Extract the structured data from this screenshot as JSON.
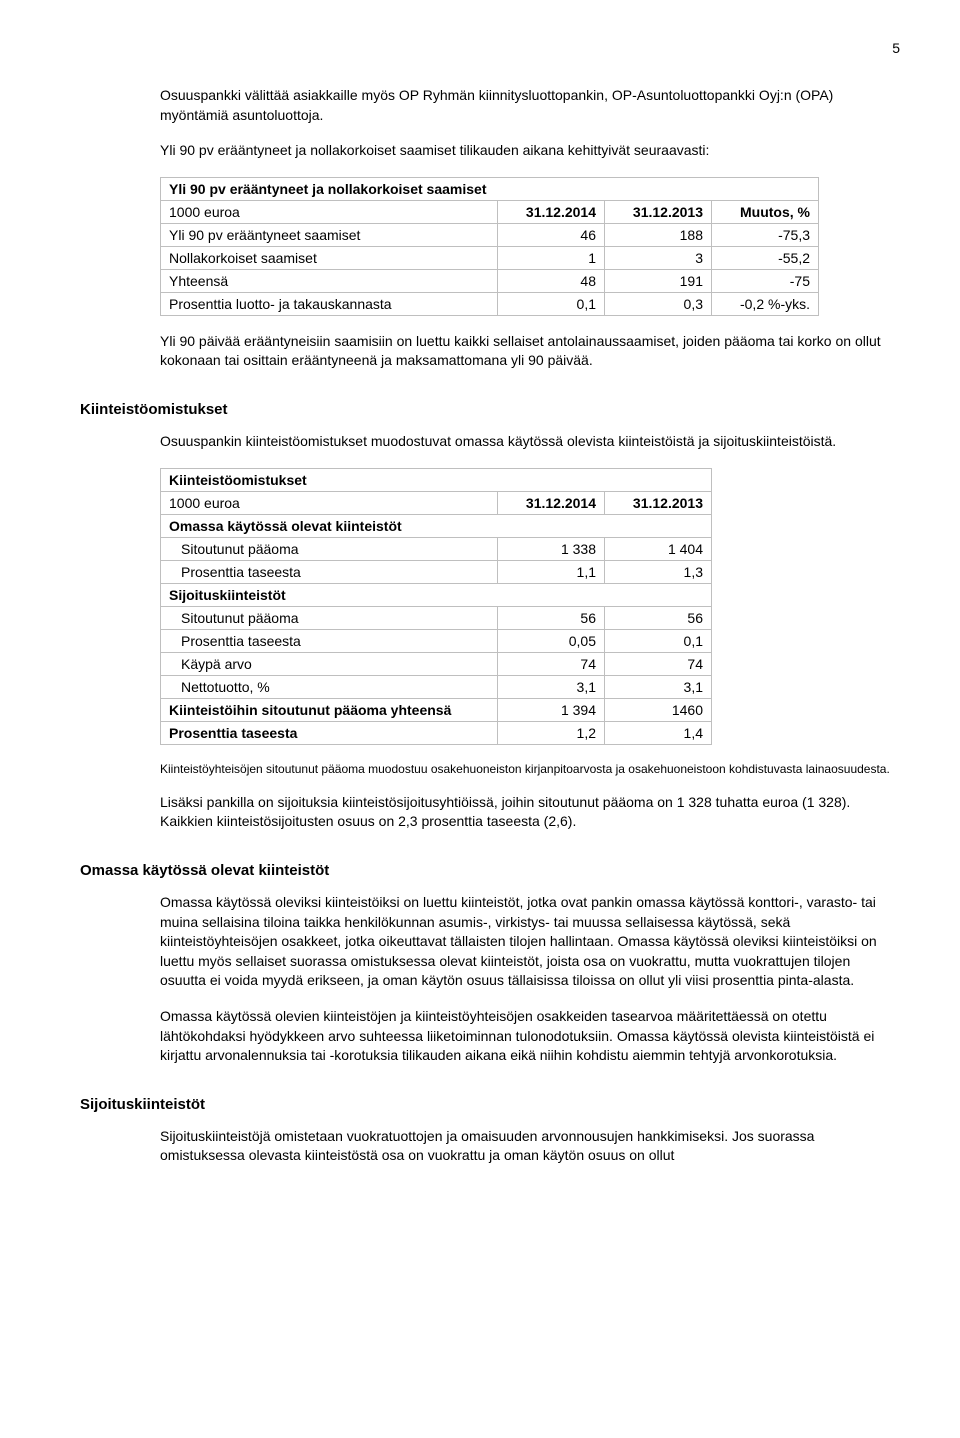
{
  "pageNumber": "5",
  "intro1": "Osuuspankki välittää asiakkaille myös OP Ryhmän kiinnitysluottopankin, OP-Asuntoluottopankki Oyj:n (OPA) myöntämiä asuntoluottoja.",
  "intro2": "Yli 90 pv erääntyneet ja nollakorkoiset saamiset tilikauden aikana kehittyivät seuraavasti:",
  "table1": {
    "title": "Yli 90 pv erääntyneet ja nollakorkoiset saamiset",
    "rowLabel": "1000 euroa",
    "col1": "31.12.2014",
    "col2": "31.12.2013",
    "col3": "Muutos, %",
    "rows": [
      {
        "label": "Yli 90 pv erääntyneet saamiset",
        "v1": "46",
        "v2": "188",
        "v3": "-75,3"
      },
      {
        "label": "Nollakorkoiset saamiset",
        "v1": "1",
        "v2": "3",
        "v3": "-55,2"
      },
      {
        "label": "Yhteensä",
        "v1": "48",
        "v2": "191",
        "v3": "-75"
      },
      {
        "label": "Prosenttia luotto- ja takauskannasta",
        "v1": "0,1",
        "v2": "0,3",
        "v3": "-0,2 %-yks."
      }
    ]
  },
  "afterTable1": "Yli 90 päivää erääntyneisiin saamisiin on luettu kaikki sellaiset antolainaussaamiset, joiden pääoma tai korko on ollut kokonaan tai osittain erääntyneenä ja maksamattomana yli 90 päivää.",
  "kiinteisto": {
    "heading": "Kiinteistöomistukset",
    "para1": "Osuuspankin kiinteistöomistukset muodostuvat omassa käytössä olevista kiinteistöistä ja sijoituskiinteistöistä.",
    "table": {
      "title": "Kiinteistöomistukset",
      "rowLabel": "1000 euroa",
      "col1": "31.12.2014",
      "col2": "31.12.2013",
      "sect1": "Omassa käytössä olevat kiinteistöt",
      "r1a": "Sitoutunut pääoma",
      "r1a_v1": "1 338",
      "r1a_v2": "1 404",
      "r1b": "Prosenttia taseesta",
      "r1b_v1": "1,1",
      "r1b_v2": "1,3",
      "sect2": "Sijoituskiinteistöt",
      "r2a": "Sitoutunut pääoma",
      "r2a_v1": "56",
      "r2a_v2": "56",
      "r2b": "Prosenttia taseesta",
      "r2b_v1": "0,05",
      "r2b_v2": "0,1",
      "r2c": "Käypä arvo",
      "r2c_v1": "74",
      "r2c_v2": "74",
      "r2d": "Nettotuotto, %",
      "r2d_v1": "3,1",
      "r2d_v2": "3,1",
      "tot": "Kiinteistöihin sitoutunut pääoma yhteensä",
      "tot_v1": "1 394",
      "tot_v2": "1460",
      "pros": "Prosenttia taseesta",
      "pros_v1": "1,2",
      "pros_v2": "1,4"
    },
    "note": "Kiinteistöyhteisöjen sitoutunut pääoma muodostuu osakehuoneiston kirjanpitoarvosta ja osakehuoneistoon kohdistuvasta lainaosuudesta.",
    "para2": "Lisäksi pankilla on sijoituksia kiinteistösijoitusyhtiöissä, joihin sitoutunut pääoma on 1 328 tuhatta euroa (1 328). Kaikkien kiinteistösijoitusten osuus on 2,3 prosenttia taseesta (2,6)."
  },
  "omassa": {
    "heading": "Omassa käytössä olevat kiinteistöt",
    "para1": "Omassa käytössä oleviksi kiinteistöiksi on luettu kiinteistöt, jotka ovat pankin omassa käytössä konttori-, varasto- tai muina sellaisina tiloina taikka henkilökunnan asumis-, virkistys- tai muussa sellaisessa käytössä, sekä kiinteistöyhteisöjen osakkeet, jotka oikeuttavat tällaisten tilojen hallintaan. Omassa käytössä oleviksi kiinteistöiksi on luettu myös sellaiset suorassa omistuksessa olevat kiinteistöt, joista osa on vuokrattu, mutta vuokrattujen tilojen osuutta ei voida myydä erikseen, ja oman käytön osuus tällaisissa tiloissa on ollut yli viisi prosenttia pinta-alasta.",
    "para2": "Omassa käytössä olevien kiinteistöjen ja kiinteistöyhteisöjen osakkeiden tasearvoa määritettäessä on otettu lähtökohdaksi hyödykkeen arvo suhteessa liiketoiminnan tulonodotuksiin. Omassa käytössä olevista kiinteistöistä ei kirjattu arvonalennuksia tai -korotuksia tilikauden aikana eikä niihin kohdistu aiemmin tehtyjä arvonkorotuksia."
  },
  "sijoitus": {
    "heading": "Sijoituskiinteistöt",
    "para1": "Sijoituskiinteistöjä omistetaan vuokratuottojen ja omaisuuden arvonnousujen hankkimiseksi. Jos suorassa omistuksessa olevasta kiinteistöstä osa on vuokrattu ja oman käytön osuus on ollut"
  }
}
